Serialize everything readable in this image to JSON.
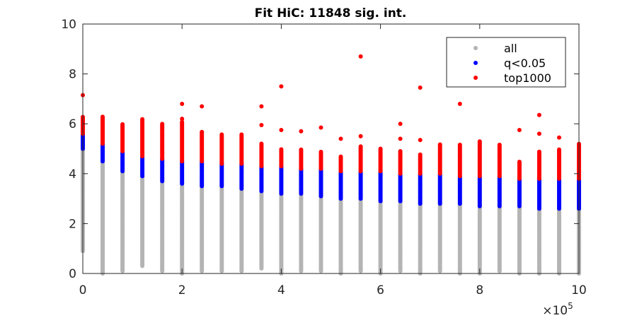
{
  "chart_data": {
    "type": "scatter",
    "title": "Fit HiC: 11848 sig. int.",
    "xlabel": "",
    "ylabel": "",
    "x_exponent_label": "×10",
    "x_exponent_power": "5",
    "xlim": [
      0,
      10
    ],
    "ylim": [
      0,
      10
    ],
    "x_ticks": [
      0,
      2,
      4,
      6,
      8,
      10
    ],
    "y_ticks": [
      0,
      2,
      4,
      6,
      8,
      10
    ],
    "x_tick_labels": [
      "0",
      "2",
      "4",
      "6",
      "8",
      "10"
    ],
    "y_tick_labels": [
      "0",
      "2",
      "4",
      "6",
      "8",
      "10"
    ],
    "legend_position": "top-right",
    "grid": false,
    "x_positions": [
      0,
      0.4,
      0.8,
      1.2,
      1.6,
      2.0,
      2.4,
      2.8,
      3.2,
      3.6,
      4.0,
      4.4,
      4.8,
      5.2,
      5.6,
      6.0,
      6.4,
      6.8,
      7.2,
      7.6,
      8.0,
      8.4,
      8.8,
      9.2,
      9.6,
      10.0
    ],
    "series": [
      {
        "name": "all",
        "color": "#b4b4b4",
        "ranges": [
          [
            0.9,
            5.0
          ],
          [
            0.0,
            4.5
          ],
          [
            0.1,
            4.1
          ],
          [
            0.3,
            3.9
          ],
          [
            0.1,
            3.7
          ],
          [
            0.0,
            3.6
          ],
          [
            0.1,
            3.5
          ],
          [
            0.1,
            3.5
          ],
          [
            0.1,
            3.4
          ],
          [
            0.2,
            3.3
          ],
          [
            0.0,
            3.2
          ],
          [
            0.1,
            3.2
          ],
          [
            0.1,
            3.1
          ],
          [
            0.0,
            3.0
          ],
          [
            0.1,
            3.0
          ],
          [
            0.0,
            2.9
          ],
          [
            0.1,
            2.9
          ],
          [
            0.0,
            2.8
          ],
          [
            0.1,
            2.8
          ],
          [
            0.0,
            2.8
          ],
          [
            0.0,
            2.7
          ],
          [
            0.1,
            2.7
          ],
          [
            0.0,
            2.7
          ],
          [
            0.0,
            2.6
          ],
          [
            0.0,
            2.6
          ],
          [
            0.0,
            2.6
          ]
        ]
      },
      {
        "name": "q<0.05",
        "color": "#0000ff",
        "ranges": [
          [
            5.0,
            5.6
          ],
          [
            4.5,
            5.2
          ],
          [
            4.1,
            4.9
          ],
          [
            3.9,
            4.7
          ],
          [
            3.7,
            4.6
          ],
          [
            3.6,
            4.5
          ],
          [
            3.5,
            4.5
          ],
          [
            3.5,
            4.4
          ],
          [
            3.4,
            4.4
          ],
          [
            3.3,
            4.3
          ],
          [
            3.2,
            4.3
          ],
          [
            3.2,
            4.2
          ],
          [
            3.1,
            4.2
          ],
          [
            3.0,
            4.1
          ],
          [
            3.0,
            4.1
          ],
          [
            2.9,
            4.1
          ],
          [
            2.9,
            4.0
          ],
          [
            2.8,
            4.0
          ],
          [
            2.8,
            4.0
          ],
          [
            2.8,
            3.9
          ],
          [
            2.7,
            3.9
          ],
          [
            2.7,
            3.9
          ],
          [
            2.7,
            3.8
          ],
          [
            2.6,
            3.8
          ],
          [
            2.6,
            3.8
          ],
          [
            2.6,
            3.8
          ]
        ]
      },
      {
        "name": "top1000",
        "color": "#ff0000",
        "ranges": [
          [
            5.6,
            6.3
          ],
          [
            5.2,
            6.3
          ],
          [
            4.9,
            6.0
          ],
          [
            4.7,
            6.2
          ],
          [
            4.6,
            6.0
          ],
          [
            4.5,
            6.1
          ],
          [
            4.5,
            5.7
          ],
          [
            4.4,
            5.6
          ],
          [
            4.4,
            5.6
          ],
          [
            4.3,
            5.2
          ],
          [
            4.3,
            5.0
          ],
          [
            4.2,
            5.0
          ],
          [
            4.2,
            4.9
          ],
          [
            4.1,
            4.7
          ],
          [
            4.1,
            5.1
          ],
          [
            4.1,
            5.0
          ],
          [
            4.0,
            4.9
          ],
          [
            4.0,
            4.8
          ],
          [
            4.0,
            5.2
          ],
          [
            3.9,
            5.2
          ],
          [
            3.9,
            5.3
          ],
          [
            3.9,
            5.2
          ],
          [
            3.8,
            4.5
          ],
          [
            3.8,
            4.9
          ],
          [
            3.8,
            5.0
          ],
          [
            3.8,
            5.2
          ]
        ]
      }
    ],
    "outliers": [
      [
        0,
        7.15
      ],
      [
        2.0,
        6.8
      ],
      [
        2.0,
        6.2
      ],
      [
        2.4,
        6.7
      ],
      [
        3.6,
        6.7
      ],
      [
        3.6,
        5.95
      ],
      [
        4.0,
        7.5
      ],
      [
        4.0,
        5.75
      ],
      [
        4.4,
        5.7
      ],
      [
        4.8,
        5.85
      ],
      [
        5.2,
        5.4
      ],
      [
        5.6,
        8.7
      ],
      [
        5.6,
        5.5
      ],
      [
        6.4,
        6.0
      ],
      [
        6.4,
        5.4
      ],
      [
        6.8,
        7.45
      ],
      [
        6.8,
        5.35
      ],
      [
        7.6,
        6.8
      ],
      [
        8.8,
        5.75
      ],
      [
        9.2,
        6.35
      ],
      [
        9.2,
        5.6
      ],
      [
        9.6,
        5.45
      ]
    ]
  }
}
